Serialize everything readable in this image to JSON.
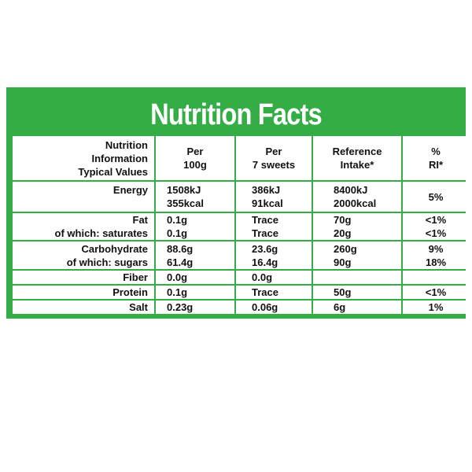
{
  "title": "Nutrition Facts",
  "colors": {
    "panel": "#35ad46",
    "text": "#111111",
    "title": "#ffffff"
  },
  "header": {
    "col0": [
      "Nutrition",
      "Information",
      "Typical Values"
    ],
    "col1": [
      "Per",
      "100g"
    ],
    "col2": [
      "Per",
      "7 sweets"
    ],
    "col3": [
      "Reference",
      "Intake*"
    ],
    "col4": [
      "%",
      "RI*"
    ]
  },
  "rows": {
    "energy": {
      "label": "Energy",
      "per100": [
        "1508kJ",
        "355kcal"
      ],
      "per7": [
        "386kJ",
        "91kcal"
      ],
      "ref": [
        "8400kJ",
        "2000kcal"
      ],
      "ri": "5%"
    },
    "fat": {
      "label": [
        "Fat",
        "of which: saturates"
      ],
      "per100": [
        "0.1g",
        "0.1g"
      ],
      "per7": [
        "Trace",
        "Trace"
      ],
      "ref": [
        "70g",
        "20g"
      ],
      "ri": [
        "<1%",
        "<1%"
      ]
    },
    "carbohydrate": {
      "label": [
        "Carbohydrate",
        "of which: sugars"
      ],
      "per100": [
        "88.6g",
        "61.4g"
      ],
      "per7": [
        "23.6g",
        "16.4g"
      ],
      "ref": [
        "260g",
        "90g"
      ],
      "ri": [
        "9%",
        "18%"
      ]
    },
    "fiber": {
      "label": "Fiber",
      "per100": "0.0g",
      "per7": "0.0g",
      "ref": "",
      "ri": ""
    },
    "protein": {
      "label": "Protein",
      "per100": "0.1g",
      "per7": "Trace",
      "ref": "50g",
      "ri": "<1%"
    },
    "salt": {
      "label": "Salt",
      "per100": "0.23g",
      "per7": "0.06g",
      "ref": "6g",
      "ri": "1%"
    }
  }
}
